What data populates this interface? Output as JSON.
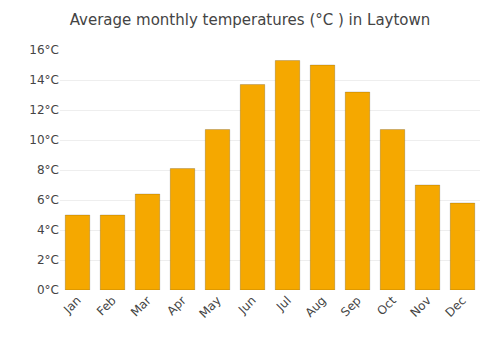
{
  "chart_data": {
    "type": "bar",
    "title": "Average monthly temperatures (°C ) in Laytown",
    "categories": [
      "Jan",
      "Feb",
      "Mar",
      "Apr",
      "May",
      "Jun",
      "Jul",
      "Aug",
      "Sep",
      "Oct",
      "Nov",
      "Dec"
    ],
    "values": [
      5.0,
      5.0,
      6.4,
      8.1,
      10.7,
      13.7,
      15.3,
      15.0,
      13.2,
      10.7,
      7.0,
      5.8
    ],
    "color": "#F5A800",
    "ylim": [
      0,
      16
    ],
    "yticks": [
      {
        "value": 0,
        "label": "0°C"
      },
      {
        "value": 2,
        "label": "2°C"
      },
      {
        "value": 4,
        "label": "4°C"
      },
      {
        "value": 6,
        "label": "6°C"
      },
      {
        "value": 8,
        "label": "8°C"
      },
      {
        "value": 10,
        "label": "10°C"
      },
      {
        "value": 12,
        "label": "12°C"
      },
      {
        "value": 14,
        "label": "14°C"
      },
      {
        "value": 16,
        "label": "16°C"
      }
    ],
    "grid": true
  }
}
